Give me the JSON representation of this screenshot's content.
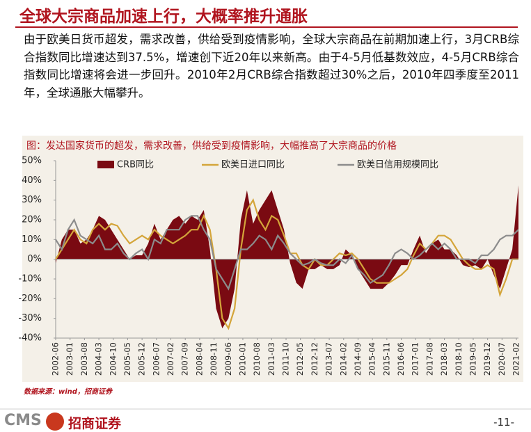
{
  "title": "全球大宗商品加速上行，大概率推升通胀",
  "body_text": "由于欧美日货币超发，需求改善，供给受到疫情影响，全球大宗商品在前期加速上行，3月CRB综合指数同比增速达到37.5%，增速创下近20年以来新高。由于4-5月低基数效应，4-5月CRB综合指数同比增速将会进一步回升。2010年2月CRB综合指数超过30%之后，2010年四季度至2011年，全球通胀大幅攀升。",
  "chart_data": {
    "type": "line",
    "title": "图：发达国家货币的超发，需求改善，供给受到疫情影响，大幅推高了大宗商品的价格",
    "x": [
      "2002-06",
      "2002-09",
      "2002-12",
      "2003-03",
      "2003-06",
      "2003-09",
      "2003-12",
      "2004-03",
      "2004-06",
      "2004-09",
      "2004-12",
      "2005-03",
      "2005-06",
      "2005-09",
      "2005-12",
      "2006-03",
      "2006-06",
      "2006-09",
      "2006-12",
      "2007-03",
      "2007-06",
      "2007-09",
      "2007-12",
      "2008-03",
      "2008-06",
      "2008-09",
      "2008-12",
      "2009-03",
      "2009-06",
      "2009-09",
      "2009-12",
      "2010-03",
      "2010-06",
      "2010-09",
      "2010-12",
      "2011-03",
      "2011-06",
      "2011-09",
      "2011-12",
      "2012-03",
      "2012-06",
      "2012-09",
      "2012-12",
      "2013-03",
      "2013-06",
      "2013-09",
      "2013-12",
      "2014-03",
      "2014-06",
      "2014-09",
      "2014-12",
      "2015-03",
      "2015-06",
      "2015-09",
      "2015-12",
      "2016-03",
      "2016-06",
      "2016-09",
      "2016-12",
      "2017-03",
      "2017-06",
      "2017-09",
      "2017-12",
      "2018-03",
      "2018-06",
      "2018-09",
      "2018-12",
      "2019-03",
      "2019-06",
      "2019-09",
      "2019-12",
      "2020-03",
      "2020-06",
      "2020-09",
      "2020-12",
      "2021-03"
    ],
    "series": [
      {
        "name": "CRB同比",
        "color": "#7a0a12",
        "style": "area",
        "values": [
          -2,
          10,
          15,
          15,
          8,
          10,
          15,
          22,
          20,
          15,
          10,
          5,
          0,
          2,
          2,
          8,
          18,
          10,
          15,
          20,
          22,
          18,
          22,
          20,
          25,
          5,
          -25,
          -35,
          -30,
          -15,
          20,
          35,
          18,
          25,
          30,
          35,
          25,
          15,
          -2,
          -12,
          -15,
          -5,
          -5,
          -3,
          -5,
          -5,
          -3,
          5,
          2,
          -5,
          -10,
          -15,
          -15,
          -15,
          -12,
          -8,
          -3,
          -3,
          5,
          12,
          3,
          8,
          10,
          5,
          5,
          2,
          -3,
          -4,
          -3,
          -5,
          0,
          -8,
          -15,
          -5,
          5,
          37.5
        ]
      },
      {
        "name": "欧美日进口同比",
        "color": "#d4a53a",
        "style": "line",
        "values": [
          0,
          5,
          10,
          15,
          10,
          8,
          15,
          18,
          15,
          18,
          17,
          12,
          8,
          10,
          12,
          10,
          15,
          12,
          10,
          8,
          10,
          12,
          15,
          15,
          22,
          15,
          -5,
          -30,
          -35,
          -25,
          5,
          25,
          30,
          20,
          15,
          22,
          20,
          12,
          3,
          3,
          -3,
          -5,
          0,
          -3,
          -3,
          0,
          3,
          2,
          3,
          0,
          -5,
          -10,
          -12,
          -12,
          -12,
          -10,
          -8,
          -5,
          2,
          8,
          5,
          8,
          12,
          12,
          10,
          5,
          0,
          -3,
          -5,
          -5,
          -3,
          -5,
          -18,
          -10,
          0,
          0
        ]
      },
      {
        "name": "欧美日信用规模同比",
        "color": "#8c8c8c",
        "style": "line",
        "values": [
          10,
          5,
          15,
          20,
          12,
          10,
          8,
          12,
          5,
          5,
          8,
          3,
          0,
          3,
          5,
          0,
          10,
          8,
          15,
          15,
          15,
          20,
          22,
          22,
          15,
          10,
          -5,
          -10,
          -15,
          -5,
          5,
          5,
          8,
          12,
          10,
          5,
          12,
          8,
          3,
          0,
          -3,
          -2,
          0,
          -2,
          -3,
          -3,
          0,
          -2,
          2,
          -5,
          -8,
          -12,
          -10,
          -8,
          -3,
          3,
          5,
          3,
          0,
          2,
          5,
          8,
          5,
          8,
          5,
          0,
          0,
          0,
          -2,
          2,
          2,
          5,
          10,
          12,
          12,
          15
        ]
      }
    ],
    "xlim": [
      "2002-06",
      "2021-03"
    ],
    "xticks": [
      "2002-06",
      "2003-01",
      "2003-08",
      "2004-03",
      "2004-10",
      "2005-05",
      "2005-12",
      "2006-07",
      "2007-02",
      "2007-09",
      "2008-04",
      "2008-11",
      "2009-06",
      "2010-01",
      "2010-08",
      "2011-03",
      "2011-10",
      "2012-05",
      "2012-12",
      "2013-07",
      "2014-02",
      "2014-09",
      "2015-04",
      "2015-11",
      "2016-06",
      "2017-01",
      "2017-08",
      "2018-03",
      "2018-10",
      "2019-05",
      "2019-12",
      "2020-07",
      "2021-02"
    ],
    "ylim": [
      -40,
      50
    ],
    "yticks": [
      {
        "value": 50,
        "label": "50%"
      },
      {
        "value": 40,
        "label": "40%"
      },
      {
        "value": 30,
        "label": "30%"
      },
      {
        "value": 20,
        "label": "20%"
      },
      {
        "value": 10,
        "label": "10%"
      },
      {
        "value": 0,
        "label": "0%"
      },
      {
        "value": -10,
        "label": "-10%"
      },
      {
        "value": -20,
        "label": "-20%"
      },
      {
        "value": -30,
        "label": "-30%"
      },
      {
        "value": -40,
        "label": "-40%"
      }
    ],
    "source": "数据来源：wind，招商证券"
  },
  "footer": {
    "logo_text": "CMS",
    "company": "招商证券",
    "page": "-11-"
  }
}
